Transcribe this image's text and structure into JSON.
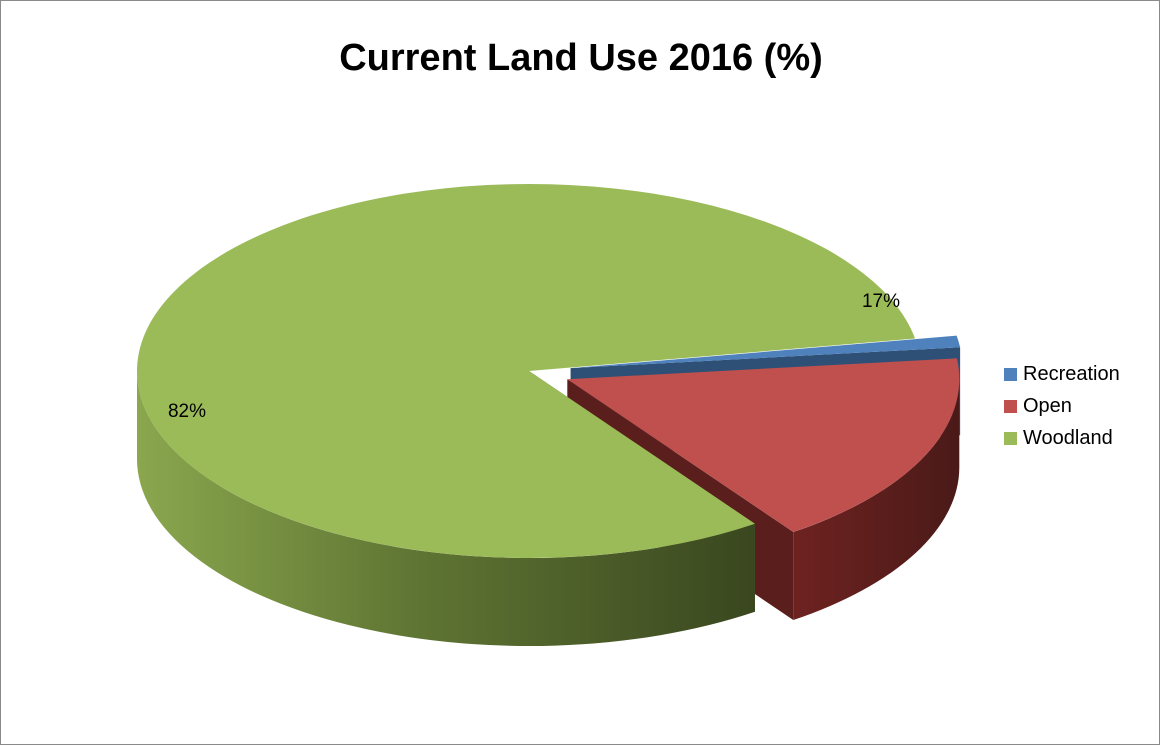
{
  "chart_data": {
    "type": "pie",
    "title": "Current Land Use 2016 (%)",
    "three_d": true,
    "legend_position": "right",
    "series": [
      {
        "name": "Recreation",
        "value": 1,
        "color": "#4f81bd",
        "label": ""
      },
      {
        "name": "Open",
        "value": 17,
        "color": "#c0504d",
        "label": "17%"
      },
      {
        "name": "Woodland",
        "value": 82,
        "color": "#9bbb59",
        "label": "82%"
      }
    ]
  }
}
